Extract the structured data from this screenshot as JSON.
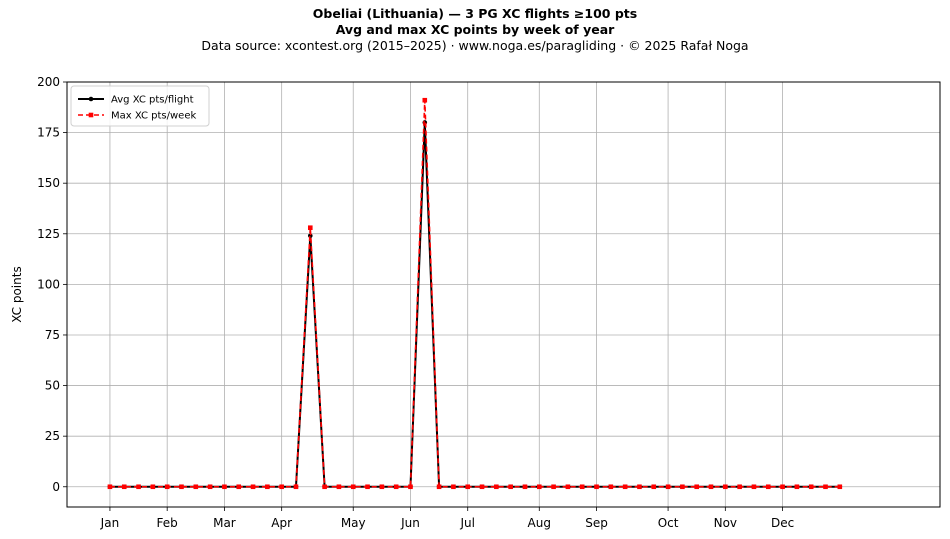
{
  "chart_data": {
    "type": "line",
    "title": "Obeliai (Lithuania)  —  3 PG XC flights ≥100 pts",
    "subtitle": "Avg and max XC points by week of year",
    "source_line": "Data source: xcontest.org (2015–2025)  ·  www.noga.es/paragliding  ·  © 2025 Rafał Noga",
    "xlabel": "",
    "ylabel": "XC points",
    "ylim": [
      -10,
      200
    ],
    "yticks": [
      0,
      25,
      50,
      75,
      100,
      125,
      150,
      175,
      200
    ],
    "xlim": [
      -3,
      58
    ],
    "xticks": [
      {
        "label": "Jan",
        "week": 0
      },
      {
        "label": "Feb",
        "week": 4
      },
      {
        "label": "Mar",
        "week": 8
      },
      {
        "label": "Apr",
        "week": 12
      },
      {
        "label": "May",
        "week": 17
      },
      {
        "label": "Jun",
        "week": 21
      },
      {
        "label": "Jul",
        "week": 25
      },
      {
        "label": "Aug",
        "week": 30
      },
      {
        "label": "Sep",
        "week": 34
      },
      {
        "label": "Oct",
        "week": 39
      },
      {
        "label": "Nov",
        "week": 43
      },
      {
        "label": "Dec",
        "week": 47
      }
    ],
    "grid": true,
    "legend_position": "top-left",
    "x": [
      0,
      1,
      2,
      3,
      4,
      5,
      6,
      7,
      8,
      9,
      10,
      11,
      12,
      13,
      14,
      15,
      16,
      17,
      18,
      19,
      20,
      21,
      22,
      23,
      24,
      25,
      26,
      27,
      28,
      29,
      30,
      31,
      32,
      33,
      34,
      35,
      36,
      37,
      38,
      39,
      40,
      41,
      42,
      43,
      44,
      45,
      46,
      47,
      48,
      49,
      50,
      51
    ],
    "series": [
      {
        "name": "Avg XC pts/flight",
        "color": "#000000",
        "style": "solid",
        "marker": "circle",
        "values": [
          0,
          0,
          0,
          0,
          0,
          0,
          0,
          0,
          0,
          0,
          0,
          0,
          0,
          0,
          124,
          0,
          0,
          0,
          0,
          0,
          0,
          0,
          180,
          0,
          0,
          0,
          0,
          0,
          0,
          0,
          0,
          0,
          0,
          0,
          0,
          0,
          0,
          0,
          0,
          0,
          0,
          0,
          0,
          0,
          0,
          0,
          0,
          0,
          0,
          0,
          0,
          0
        ]
      },
      {
        "name": "Max XC pts/week",
        "color": "#ff0000",
        "style": "dashed",
        "marker": "square",
        "values": [
          0,
          0,
          0,
          0,
          0,
          0,
          0,
          0,
          0,
          0,
          0,
          0,
          0,
          0,
          128,
          0,
          0,
          0,
          0,
          0,
          0,
          0,
          191,
          0,
          0,
          0,
          0,
          0,
          0,
          0,
          0,
          0,
          0,
          0,
          0,
          0,
          0,
          0,
          0,
          0,
          0,
          0,
          0,
          0,
          0,
          0,
          0,
          0,
          0,
          0,
          0,
          0
        ]
      }
    ]
  }
}
